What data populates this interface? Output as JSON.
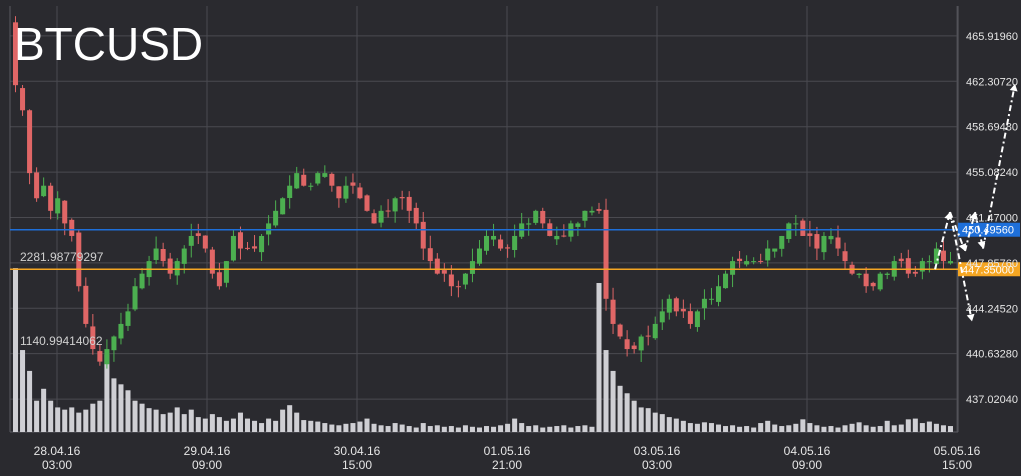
{
  "chart_data": {
    "type": "candlestick",
    "title": "BTCUSD",
    "y_ticks": [
      "465.91960",
      "462.30720",
      "458.69480",
      "455.08240",
      "451.47000",
      "447.85760",
      "444.24520",
      "440.63280",
      "437.02040"
    ],
    "y_tick_values": [
      465.9196,
      462.3072,
      458.6948,
      455.0824,
      451.47,
      447.8576,
      444.2452,
      440.6328,
      437.0204
    ],
    "ylim": [
      434.4,
      468.3
    ],
    "x_ticks": [
      {
        "date": "28.04.16",
        "time": "03:00"
      },
      {
        "date": "29.04.16",
        "time": "09:00"
      },
      {
        "date": "30.04.16",
        "time": "15:00"
      },
      {
        "date": "01.05.16",
        "time": "21:00"
      },
      {
        "date": "03.05.16",
        "time": "03:00"
      },
      {
        "date": "04.05.16",
        "time": "09:00"
      },
      {
        "date": "05.05.16",
        "time": "15:00"
      }
    ],
    "volume_labels": [
      "2281.98779297",
      "1140.99414062"
    ],
    "volume_label_values": [
      2281.98779297,
      1140.99414062
    ],
    "price_lines": [
      {
        "label": "450.49560",
        "value": 450.4956,
        "color": "#1e6fd9"
      },
      {
        "label": "447.35000",
        "value": 447.35,
        "color": "#f5a623"
      }
    ],
    "grid": true,
    "colors": {
      "up": "#4caf50",
      "down": "#e06666",
      "volume": "#cfcfd4",
      "background": "#2a2a2f",
      "grid": "#4a4a50"
    },
    "candles_note_in_script": false,
    "closes": [
      462,
      460,
      455,
      453,
      454,
      452,
      453,
      451,
      450,
      446,
      443,
      441,
      440,
      441,
      442,
      443,
      444,
      446,
      447,
      448,
      449,
      448,
      447,
      448,
      449,
      450,
      450,
      449,
      447,
      446,
      448,
      450,
      449,
      449,
      449,
      450,
      451,
      452,
      453,
      454,
      455,
      454,
      454,
      455,
      455,
      454,
      453,
      454,
      454,
      453,
      452,
      451,
      452,
      452,
      453,
      453,
      452,
      451,
      449,
      448,
      447,
      447,
      446,
      446,
      447,
      448,
      449,
      450,
      450,
      449,
      449,
      450,
      451,
      451,
      452,
      451,
      450,
      450,
      450,
      451,
      451,
      452,
      452,
      452,
      445,
      443,
      442,
      441,
      441,
      442,
      442,
      443,
      444,
      445,
      444,
      444,
      443,
      444,
      445,
      445,
      446,
      447,
      448,
      448,
      448,
      448,
      448,
      449,
      449,
      450,
      451,
      451,
      450,
      450,
      449,
      450,
      450,
      449,
      448,
      447,
      447,
      446,
      446,
      447,
      447,
      448,
      448,
      447,
      447,
      448,
      448,
      449,
      448,
      448
    ],
    "volumes": [
      2200,
      1100,
      820,
      420,
      580,
      420,
      330,
      300,
      330,
      260,
      300,
      380,
      420,
      1040,
      720,
      640,
      560,
      420,
      380,
      320,
      300,
      240,
      260,
      330,
      240,
      300,
      200,
      180,
      240,
      200,
      150,
      180,
      260,
      180,
      150,
      120,
      180,
      150,
      300,
      360,
      260,
      160,
      150,
      140,
      120,
      100,
      90,
      110,
      120,
      140,
      180,
      110,
      90,
      80,
      120,
      100,
      80,
      60,
      120,
      80,
      90,
      70,
      80,
      60,
      90,
      70,
      60,
      80,
      70,
      90,
      110,
      180,
      120,
      80,
      90,
      60,
      70,
      80,
      90,
      60,
      80,
      90,
      70,
      2000,
      1100,
      820,
      620,
      520,
      420,
      330,
      320,
      260,
      240,
      200,
      180,
      150,
      120,
      110,
      130,
      120,
      100,
      80,
      90,
      70,
      80,
      60,
      120,
      150,
      100,
      80,
      90,
      110,
      170,
      120,
      90,
      70,
      80,
      60,
      90,
      110,
      130,
      90,
      70,
      80,
      150,
      90,
      100,
      170,
      180,
      120,
      140,
      110,
      90,
      80
    ]
  }
}
